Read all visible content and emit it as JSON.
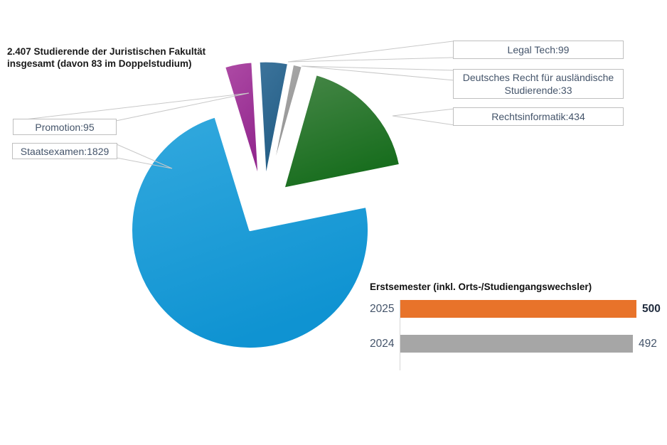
{
  "header": {
    "title_line1": "2.407 Studierende der Juristischen Fakultät",
    "title_line2": "insgesamt (davon 83 im Doppelstudium)"
  },
  "chart_data": [
    {
      "type": "pie",
      "title": "2.407 Studierende der Juristischen Fakultät insgesamt (davon 83 im Doppelstudium)",
      "total_students": "2.407",
      "double_degree_students": 83,
      "style": "exploded",
      "slices": [
        {
          "label": "Promotion",
          "value": 95,
          "color": "#AE4BA5",
          "color2": "#92278E"
        },
        {
          "label": "Legal Tech",
          "value": 99,
          "color": "#3C749C",
          "color2": "#225C84"
        },
        {
          "label": "Deutsches Recht für ausländische Studierende",
          "value": 33,
          "color": "#ACACAC",
          "color2": "#8F8F8F"
        },
        {
          "label": "Rechtsinformatik",
          "value": 434,
          "color": "#478748",
          "color2": "#176D1D"
        },
        {
          "label": "Staatsexamen",
          "value": 1829,
          "color": "#33A9DE",
          "color2": "#0F93D2"
        }
      ],
      "legend_position": "callout-boxes",
      "callouts": [
        {
          "id": "legal-tech",
          "text": "Legal Tech:99"
        },
        {
          "id": "deutsches-recht",
          "text": "Deutsches Recht für ausländische Studierende:33"
        },
        {
          "id": "rechtsinformatik",
          "text": "Rechtsinformatik:434"
        },
        {
          "id": "promotion",
          "text": "Promotion:95"
        },
        {
          "id": "staatsexamen",
          "text": "Staatsexamen:1829"
        }
      ]
    },
    {
      "type": "bar",
      "orientation": "horizontal",
      "title": "Erstsemester (inkl. Orts-/Studiengangswechsler)",
      "categories": [
        "2025",
        "2024"
      ],
      "values": [
        500,
        492
      ],
      "value_labels": [
        "500",
        "492"
      ],
      "colors": [
        "#E8732A",
        "#A6A6A6"
      ],
      "xlim": [
        0,
        500
      ],
      "grid": false,
      "axis_line_color": "#D6D6D6",
      "category_label_color": "#44546A"
    }
  ]
}
